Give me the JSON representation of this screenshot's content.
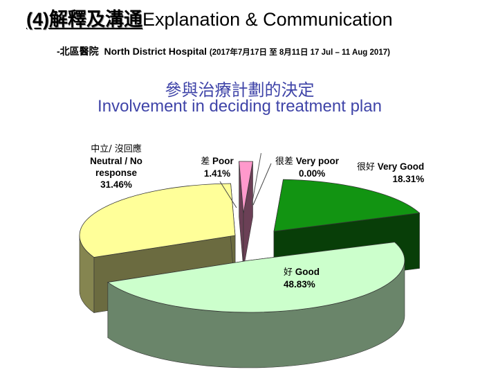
{
  "header": {
    "title_cn": "(4)解釋及溝通",
    "title_en": "Explanation & Communication",
    "subtitle_prefix": "-北區醫院",
    "subtitle_hospital": "North District Hospital",
    "subtitle_dates": "(2017年7月17日 至 8月11日 17 Jul – 11 Aug 2017)"
  },
  "question": {
    "cn": "參與治療計劃的決定",
    "en": "Involvement in deciding treatment plan"
  },
  "chart_data": {
    "type": "pie",
    "title": "參與治療計劃的決定 Involvement in deciding treatment plan",
    "style": "3d-exploded",
    "slices": [
      {
        "key": "very_good",
        "label_cn": "很好",
        "label_en": "Very Good",
        "value": 18.31,
        "value_text": "18.31%",
        "color": "#129412"
      },
      {
        "key": "good",
        "label_cn": "好",
        "label_en": "Good",
        "value": 48.83,
        "value_text": "48.83%",
        "color": "#ccffcc"
      },
      {
        "key": "neutral",
        "label_cn": "中立/ 沒回應",
        "label_en": "Neutral / No response",
        "label_en_line1": "Neutral / No",
        "label_en_line2": "response",
        "value": 31.46,
        "value_text": "31.46%",
        "color": "#ffff99"
      },
      {
        "key": "poor",
        "label_cn": "差",
        "label_en": "Poor",
        "value": 1.41,
        "value_text": "1.41%",
        "color": "#ff99cc"
      },
      {
        "key": "very_poor",
        "label_cn": "很差",
        "label_en": "Very poor",
        "value": 0.0,
        "value_text": "0.00%",
        "color": "#cc99ff"
      }
    ]
  }
}
